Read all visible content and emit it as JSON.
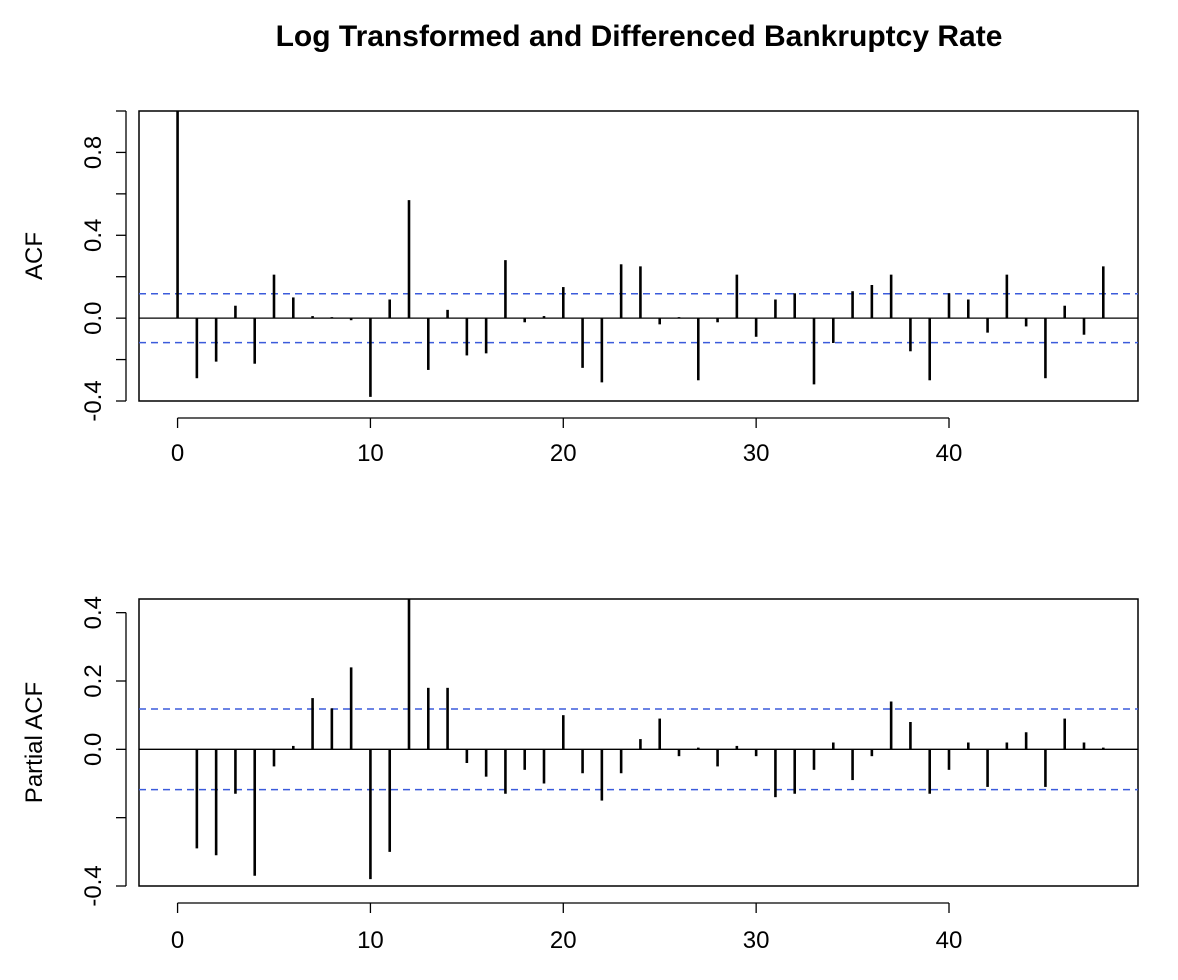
{
  "figure": {
    "title": "Log Transformed and Differenced Bankruptcy Rate"
  },
  "colors": {
    "bar": "#000000",
    "confidence_band": "#3b5bdb",
    "frame": "#000000",
    "background": "#ffffff"
  },
  "chart_data": [
    {
      "type": "bar",
      "ylabel": "ACF",
      "xlim": [
        0,
        49
      ],
      "ylim": [
        -0.4,
        1.0
      ],
      "x_ticks": [
        0,
        10,
        20,
        30,
        40
      ],
      "y_ticks": [
        -0.4,
        0.0,
        0.4,
        0.8
      ],
      "y_tick_labels": [
        "-0.4",
        "0.0",
        "0.4",
        "0.8"
      ],
      "confidence_bounds": [
        0.118,
        -0.118
      ],
      "lags": [
        0,
        1,
        2,
        3,
        4,
        5,
        6,
        7,
        8,
        9,
        10,
        11,
        12,
        13,
        14,
        15,
        16,
        17,
        18,
        19,
        20,
        21,
        22,
        23,
        24,
        25,
        26,
        27,
        28,
        29,
        30,
        31,
        32,
        33,
        34,
        35,
        36,
        37,
        38,
        39,
        40,
        41,
        42,
        43,
        44,
        45,
        46,
        47,
        48
      ],
      "values": [
        1.0,
        -0.29,
        -0.21,
        0.06,
        -0.22,
        0.21,
        0.1,
        0.01,
        0.005,
        -0.01,
        -0.38,
        0.09,
        0.57,
        -0.25,
        0.04,
        -0.18,
        -0.17,
        0.28,
        -0.02,
        0.01,
        0.15,
        -0.24,
        -0.31,
        0.26,
        0.25,
        -0.03,
        0.005,
        -0.3,
        -0.02,
        0.21,
        -0.09,
        0.09,
        0.12,
        -0.32,
        -0.12,
        0.13,
        0.16,
        0.21,
        -0.16,
        -0.3,
        0.12,
        0.09,
        -0.07,
        0.21,
        -0.04,
        -0.29,
        0.06,
        -0.08,
        0.25
      ]
    },
    {
      "type": "bar",
      "ylabel": "Partial ACF",
      "xlim": [
        0,
        49
      ],
      "ylim": [
        -0.4,
        0.45
      ],
      "x_ticks": [
        0,
        10,
        20,
        30,
        40
      ],
      "y_ticks": [
        -0.4,
        -0.2,
        0.0,
        0.2,
        0.4
      ],
      "y_tick_labels": [
        "-0.4",
        "",
        "0.0",
        "0.2",
        "0.4"
      ],
      "confidence_bounds": [
        0.118,
        -0.118
      ],
      "lags": [
        1,
        2,
        3,
        4,
        5,
        6,
        7,
        8,
        9,
        10,
        11,
        12,
        13,
        14,
        15,
        16,
        17,
        18,
        19,
        20,
        21,
        22,
        23,
        24,
        25,
        26,
        27,
        28,
        29,
        30,
        31,
        32,
        33,
        34,
        35,
        36,
        37,
        38,
        39,
        40,
        41,
        42,
        43,
        44,
        45,
        46,
        47,
        48
      ],
      "values": [
        -0.29,
        -0.31,
        -0.13,
        -0.37,
        -0.05,
        0.01,
        0.15,
        0.12,
        0.24,
        -0.38,
        -0.3,
        0.44,
        0.18,
        0.18,
        -0.04,
        -0.08,
        -0.13,
        -0.06,
        -0.1,
        0.1,
        -0.07,
        -0.15,
        -0.07,
        0.03,
        0.09,
        -0.02,
        0.005,
        -0.05,
        0.01,
        -0.02,
        -0.14,
        -0.13,
        -0.06,
        0.02,
        -0.09,
        -0.02,
        0.14,
        0.08,
        -0.13,
        -0.06,
        0.02,
        -0.11,
        0.02,
        0.05,
        -0.11,
        0.09,
        0.02,
        0.005
      ]
    }
  ]
}
